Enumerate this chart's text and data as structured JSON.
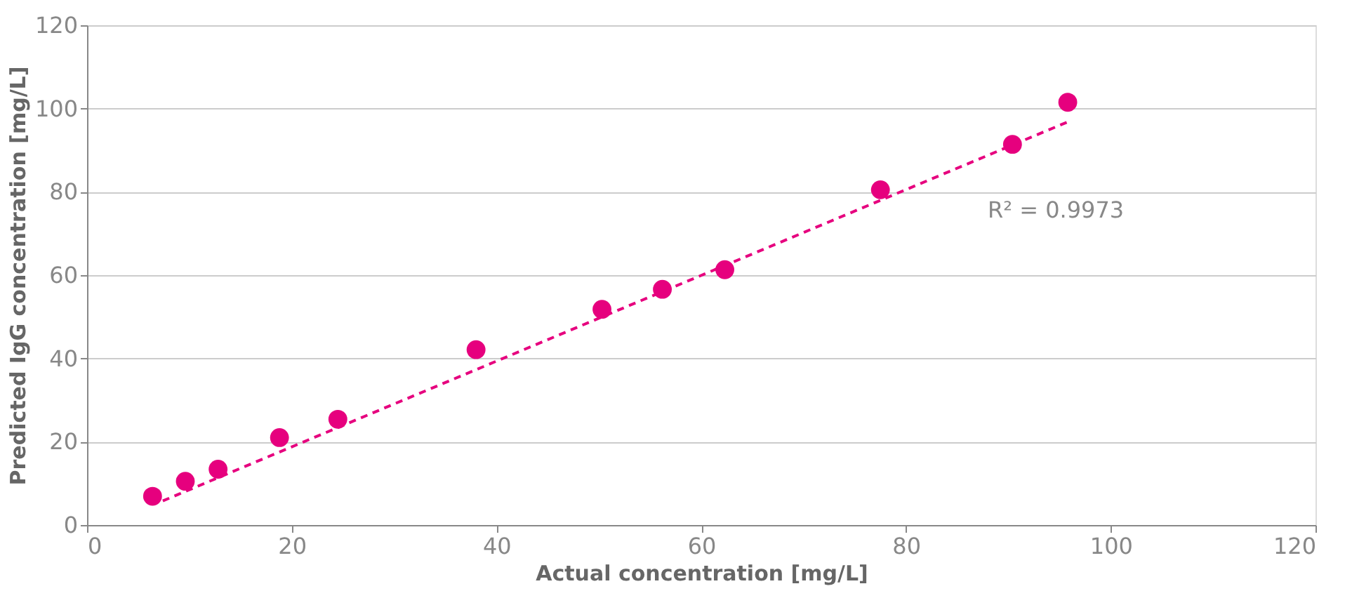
{
  "chart_data": {
    "type": "scatter",
    "xlabel": "Actual concentration [mg/L]",
    "ylabel": "Predicted IgG concentration [mg/L]",
    "xlim": [
      0,
      120
    ],
    "xticks": [
      0,
      20,
      40,
      60,
      80,
      100,
      120
    ],
    "ylim": [
      0,
      120
    ],
    "yticks": [
      0,
      20,
      40,
      60,
      80,
      100,
      120
    ],
    "grid": "y",
    "marker": "circle",
    "series": [
      {
        "color": "#e6007e",
        "x": [
          6.4,
          9.6,
          12.8,
          18.8,
          24.5,
          38.0,
          50.3,
          56.2,
          62.3,
          77.5,
          90.4,
          95.8
        ],
        "values": [
          6.9,
          10.5,
          13.4,
          21.0,
          25.4,
          42.1,
          51.8,
          56.6,
          61.3,
          80.5,
          91.4,
          101.5
        ]
      },
      {
        "type": "line",
        "line_style": "dashed",
        "marker": "none",
        "color": "#e6007e",
        "x": [
          7.4,
          95.8
        ],
        "values": [
          5.8,
          96.8
        ]
      }
    ],
    "annotations": [
      "R² = 0.9973"
    ]
  }
}
